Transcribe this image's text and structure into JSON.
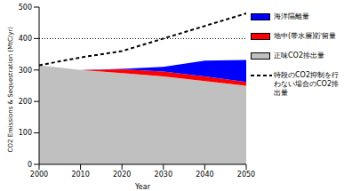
{
  "chart_data": {
    "type": "area",
    "stacked": true,
    "x_label": "Year",
    "y_label": "CO2 Emissions & Sequestration (MtC/yr)",
    "x": [
      2000,
      2010,
      2020,
      2030,
      2040,
      2050
    ],
    "xlim": [
      2000,
      2050
    ],
    "xticks": [
      2000,
      2010,
      2020,
      2030,
      2040,
      2050
    ],
    "ylim": [
      0,
      500
    ],
    "yticks": [
      0,
      100,
      200,
      300,
      400,
      500
    ],
    "reference_line": 400,
    "series": [
      {
        "name": "海洋隔離量",
        "color": "#0000ff",
        "type": "area",
        "values": [
          0,
          0,
          2,
          15,
          50,
          70
        ]
      },
      {
        "name": "地中(帯水層)貯留量",
        "color": "#ff0000",
        "type": "area",
        "values": [
          0,
          0,
          12,
          15,
          15,
          12
        ]
      },
      {
        "name": "正味CO2排出量",
        "color": "#c0c0c0",
        "type": "area",
        "values": [
          315,
          300,
          290,
          280,
          265,
          250
        ]
      },
      {
        "name": "特段のCO2抑制を行わない場合のCO2排出量",
        "color": "#000000",
        "type": "line",
        "line_style": "dashed",
        "values": [
          315,
          340,
          360,
          400,
          440,
          480
        ]
      }
    ]
  }
}
